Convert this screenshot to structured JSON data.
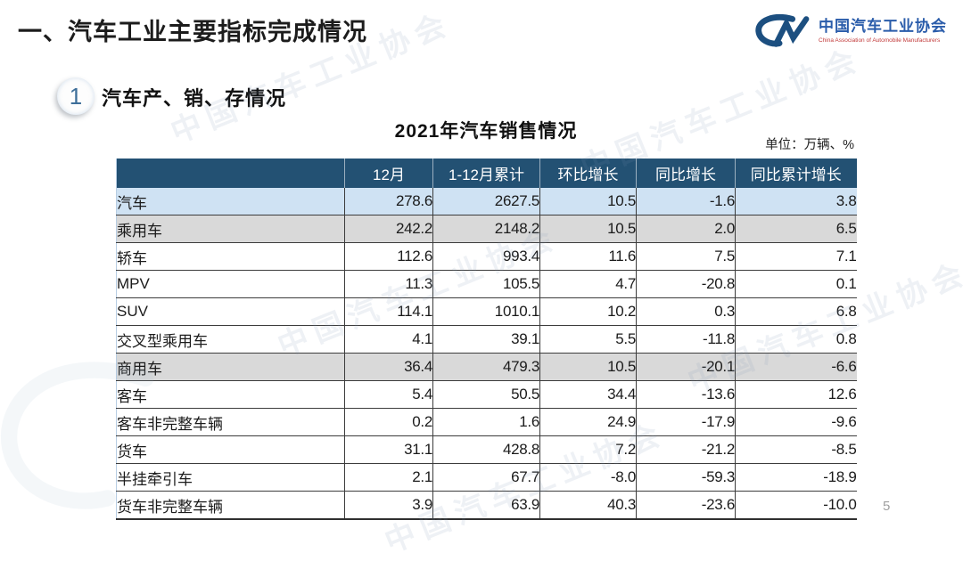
{
  "slide": {
    "title": "一、汽车工业主要指标完成情况",
    "page_number": "5"
  },
  "logo": {
    "mark": "CM-swoosh",
    "name_cn": "中国汽车工业协会",
    "name_en": "China Association of Automobile Manufacturers",
    "blue": "#1C4F80",
    "red": "#C23B3B"
  },
  "section": {
    "badge": "1",
    "title": "汽车产、销、存情况"
  },
  "table": {
    "title": "2021年汽车销售情况",
    "unit_note": "单位：万辆、%",
    "columns": [
      "",
      "12月",
      "1-12月累计",
      "环比增长",
      "同比增长",
      "同比累计增长"
    ],
    "rows": [
      {
        "label": "汽车",
        "indent": 0,
        "style": "blue",
        "values": [
          "278.6",
          "2627.5",
          "10.5",
          "-1.6",
          "3.8"
        ]
      },
      {
        "label": "乘用车",
        "indent": 1,
        "style": "gray",
        "values": [
          "242.2",
          "2148.2",
          "10.5",
          "2.0",
          "6.5"
        ]
      },
      {
        "label": "轿车",
        "indent": 2,
        "style": "white",
        "values": [
          "112.6",
          "993.4",
          "11.6",
          "7.5",
          "7.1"
        ]
      },
      {
        "label": "MPV",
        "indent": 2,
        "style": "white",
        "values": [
          "11.3",
          "105.5",
          "4.7",
          "-20.8",
          "0.1"
        ]
      },
      {
        "label": "SUV",
        "indent": 2,
        "style": "white",
        "values": [
          "114.1",
          "1010.1",
          "10.2",
          "0.3",
          "6.8"
        ]
      },
      {
        "label": "交叉型乘用车",
        "indent": 2,
        "style": "white",
        "values": [
          "4.1",
          "39.1",
          "5.5",
          "-11.8",
          "0.8"
        ]
      },
      {
        "label": "商用车",
        "indent": 1,
        "style": "gray",
        "values": [
          "36.4",
          "479.3",
          "10.5",
          "-20.1",
          "-6.6"
        ]
      },
      {
        "label": "客车",
        "indent": 2,
        "style": "white",
        "values": [
          "5.4",
          "50.5",
          "34.4",
          "-13.6",
          "12.6"
        ]
      },
      {
        "label": "客车非完整车辆",
        "indent": 3,
        "style": "white",
        "values": [
          "0.2",
          "1.6",
          "24.9",
          "-17.9",
          "-9.6"
        ]
      },
      {
        "label": "货车",
        "indent": 2,
        "style": "white",
        "values": [
          "31.1",
          "428.8",
          "7.2",
          "-21.2",
          "-8.5"
        ]
      },
      {
        "label": "半挂牵引车",
        "indent": 3,
        "style": "white",
        "values": [
          "2.1",
          "67.7",
          "-8.0",
          "-59.3",
          "-18.9"
        ]
      },
      {
        "label": "货车非完整车辆",
        "indent": 3,
        "style": "white",
        "values": [
          "3.9",
          "63.9",
          "40.3",
          "-23.6",
          "-10.0"
        ]
      }
    ],
    "colors": {
      "header_bg": "#235173",
      "header_text": "#FFFFFF",
      "row_blue": "#CFE2F3",
      "row_gray": "#D9D9D9",
      "row_white": "#FFFFFF",
      "border": "#3C3C3C"
    }
  },
  "watermark": {
    "text": "中国汽车工业协会"
  },
  "chart_data": {
    "type": "table",
    "title": "2021年汽车销售情况",
    "unit": "万辆、%",
    "columns": [
      "12月",
      "1-12月累计",
      "环比增长",
      "同比增长",
      "同比累计增长"
    ],
    "rows": [
      {
        "name": "汽车",
        "values": [
          278.6,
          2627.5,
          10.5,
          -1.6,
          3.8
        ]
      },
      {
        "name": "乘用车",
        "values": [
          242.2,
          2148.2,
          10.5,
          2.0,
          6.5
        ]
      },
      {
        "name": "轿车",
        "values": [
          112.6,
          993.4,
          11.6,
          7.5,
          7.1
        ]
      },
      {
        "name": "MPV",
        "values": [
          11.3,
          105.5,
          4.7,
          -20.8,
          0.1
        ]
      },
      {
        "name": "SUV",
        "values": [
          114.1,
          1010.1,
          10.2,
          0.3,
          6.8
        ]
      },
      {
        "name": "交叉型乘用车",
        "values": [
          4.1,
          39.1,
          5.5,
          -11.8,
          0.8
        ]
      },
      {
        "name": "商用车",
        "values": [
          36.4,
          479.3,
          10.5,
          -20.1,
          -6.6
        ]
      },
      {
        "name": "客车",
        "values": [
          5.4,
          50.5,
          34.4,
          -13.6,
          12.6
        ]
      },
      {
        "name": "客车非完整车辆",
        "values": [
          0.2,
          1.6,
          24.9,
          -17.9,
          -9.6
        ]
      },
      {
        "name": "货车",
        "values": [
          31.1,
          428.8,
          7.2,
          -21.2,
          -8.5
        ]
      },
      {
        "name": "半挂牵引车",
        "values": [
          2.1,
          67.7,
          -8.0,
          -59.3,
          -18.9
        ]
      },
      {
        "name": "货车非完整车辆",
        "values": [
          3.9,
          63.9,
          40.3,
          -23.6,
          -10.0
        ]
      }
    ]
  }
}
